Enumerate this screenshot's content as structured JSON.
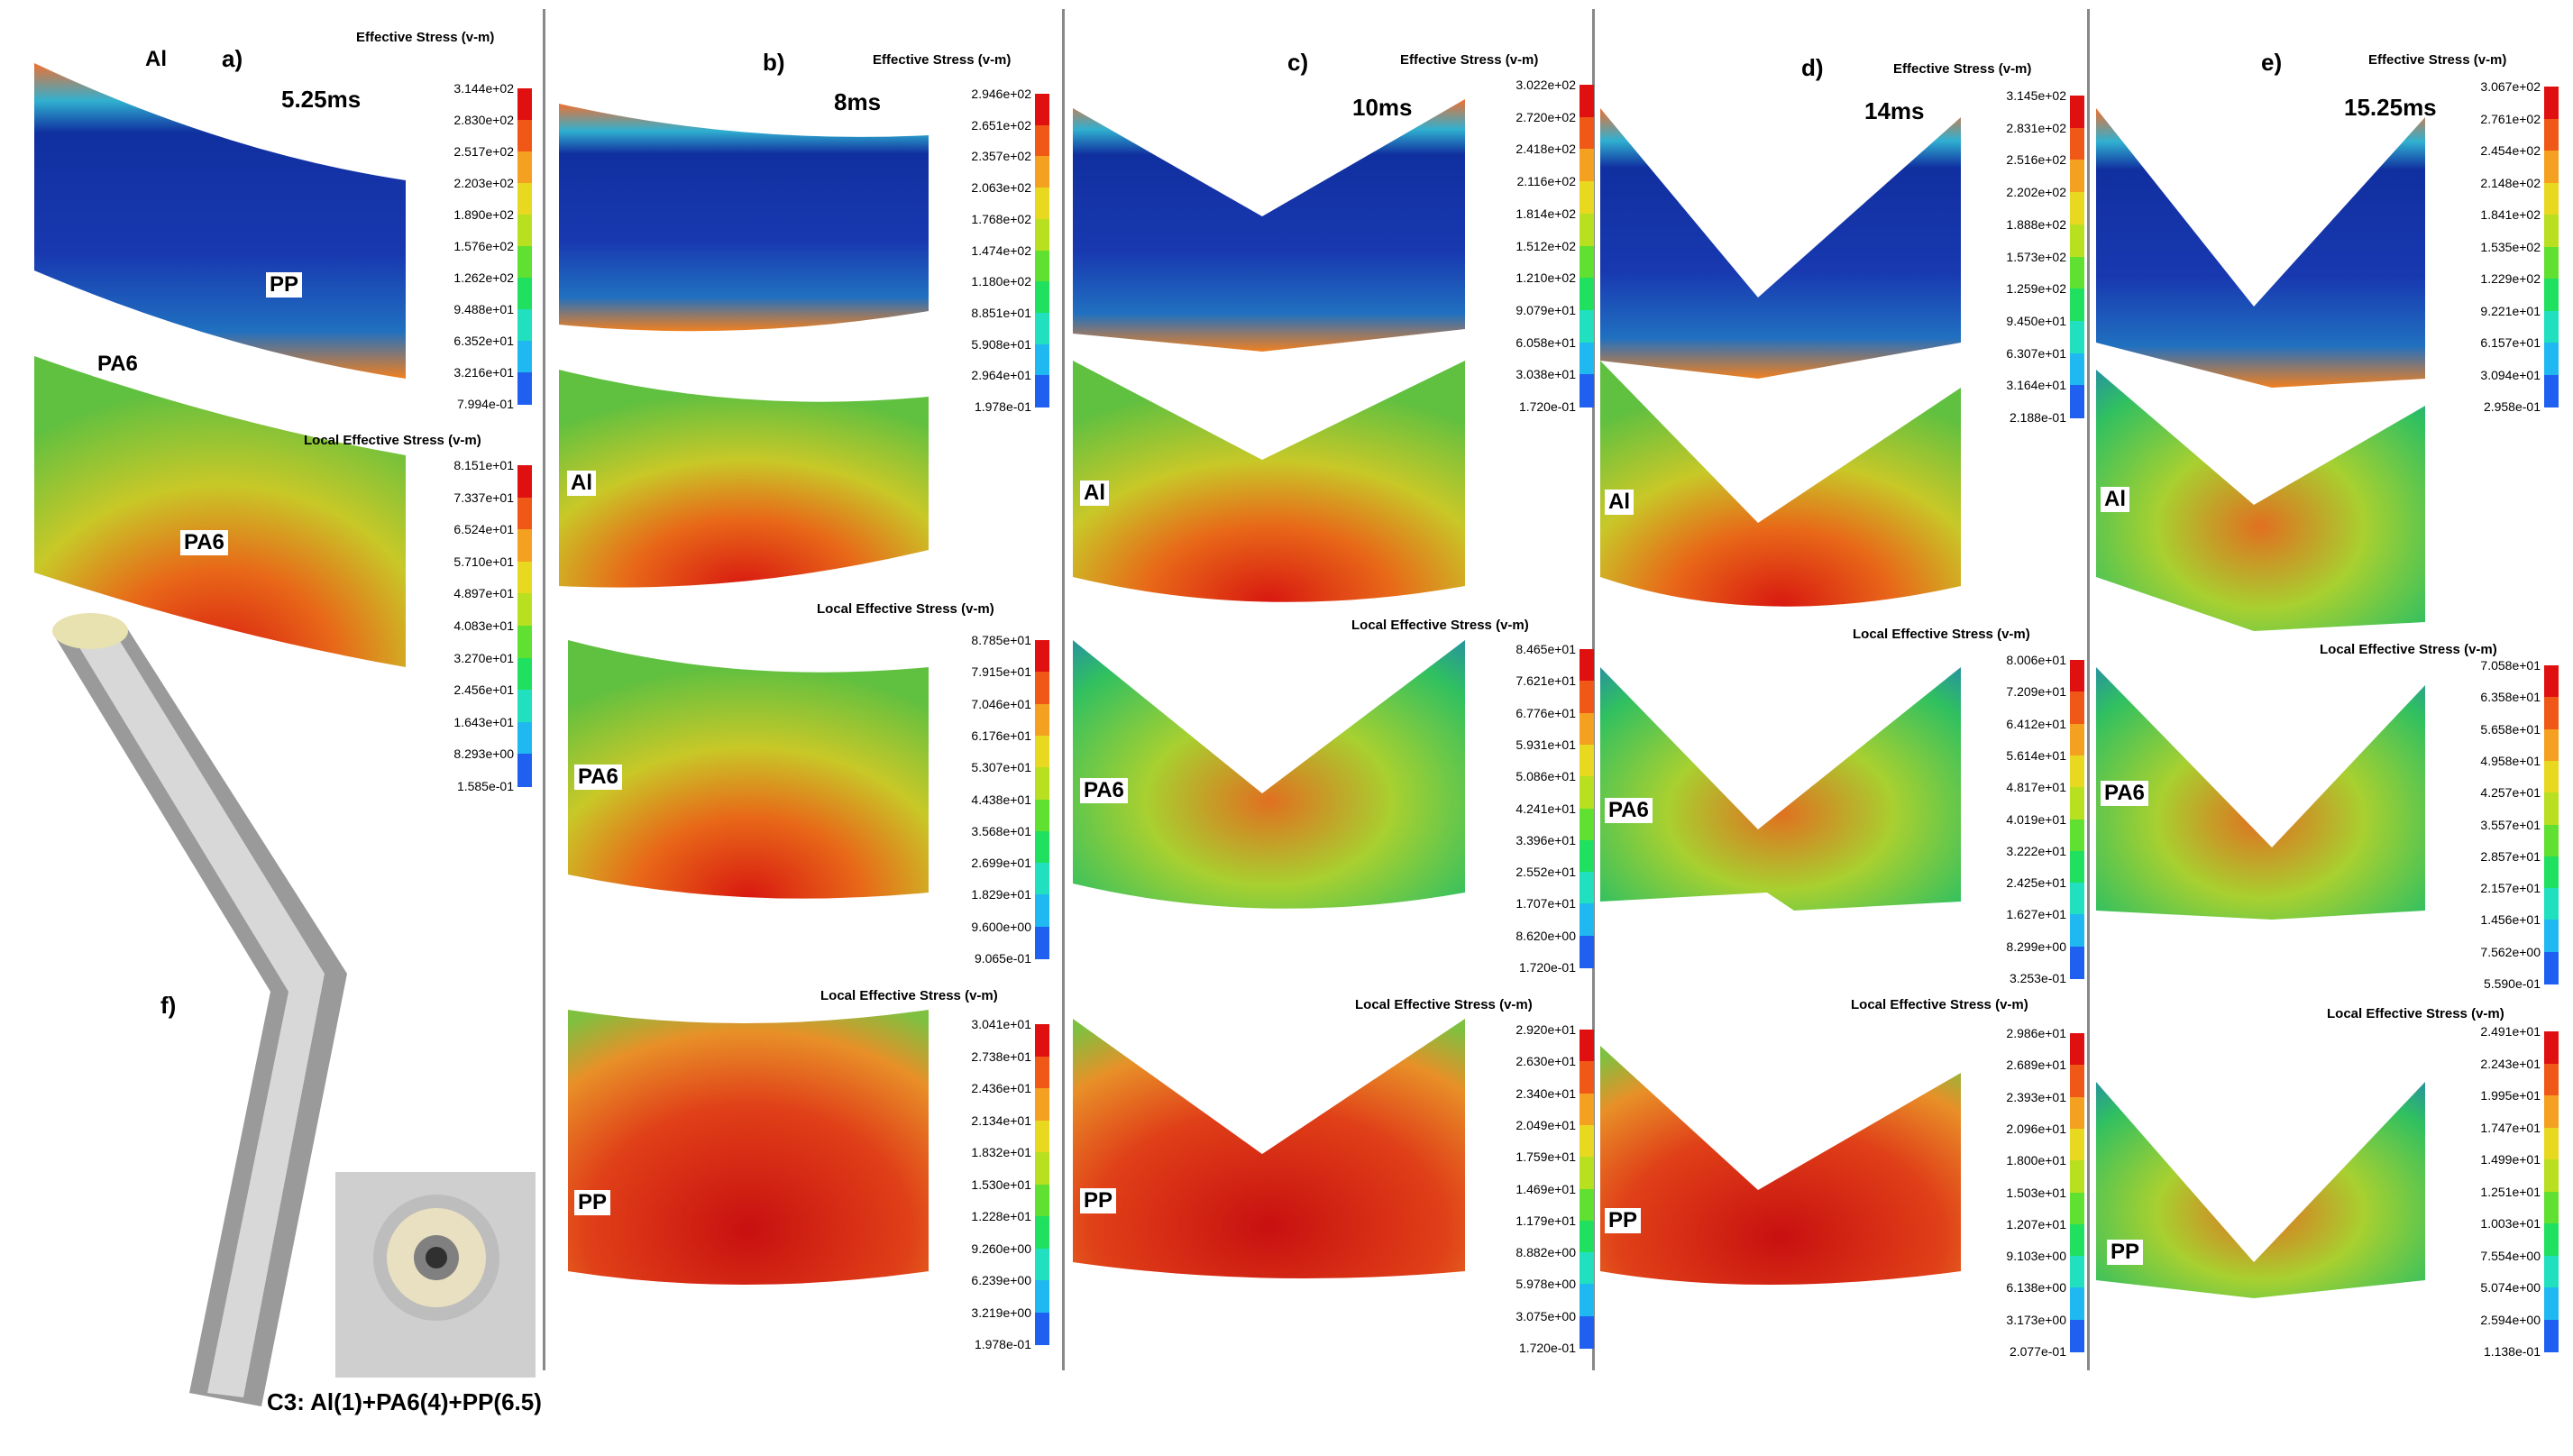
{
  "panels": [
    {
      "letter": "a)",
      "time": "5.25ms"
    },
    {
      "letter": "b)",
      "time": "8ms"
    },
    {
      "letter": "c)",
      "time": "10ms"
    },
    {
      "letter": "d)",
      "time": "14ms"
    },
    {
      "letter": "e)",
      "time": "15.25ms"
    }
  ],
  "materials": {
    "al": "Al",
    "pp": "PP",
    "pa6": "PA6"
  },
  "colorbar_titles": {
    "effective": "Effective Stress (v-m)",
    "local": "Local Effective Stress (v-m)"
  },
  "colorbars": [
    {
      "id": "a-top",
      "ticks": [
        "3.144e+02",
        "2.830e+02",
        "2.517e+02",
        "2.203e+02",
        "1.890e+02",
        "1.576e+02",
        "1.262e+02",
        "9.488e+01",
        "6.352e+01",
        "3.216e+01",
        "7.994e-01"
      ]
    },
    {
      "id": "a-pa6",
      "ticks": [
        "8.151e+01",
        "7.337e+01",
        "6.524e+01",
        "5.710e+01",
        "4.897e+01",
        "4.083e+01",
        "3.270e+01",
        "2.456e+01",
        "1.643e+01",
        "8.293e+00",
        "1.585e-01"
      ]
    },
    {
      "id": "b-top",
      "ticks": [
        "2.946e+02",
        "2.651e+02",
        "2.357e+02",
        "2.063e+02",
        "1.768e+02",
        "1.474e+02",
        "1.180e+02",
        "8.851e+01",
        "5.908e+01",
        "2.964e+01",
        "1.978e-01"
      ]
    },
    {
      "id": "b-pa6",
      "ticks": [
        "8.785e+01",
        "7.915e+01",
        "7.046e+01",
        "6.176e+01",
        "5.307e+01",
        "4.438e+01",
        "3.568e+01",
        "2.699e+01",
        "1.829e+01",
        "9.600e+00",
        "9.065e-01"
      ]
    },
    {
      "id": "b-pp",
      "ticks": [
        "3.041e+01",
        "2.738e+01",
        "2.436e+01",
        "2.134e+01",
        "1.832e+01",
        "1.530e+01",
        "1.228e+01",
        "9.260e+00",
        "6.239e+00",
        "3.219e+00",
        "1.978e-01"
      ]
    },
    {
      "id": "c-top",
      "ticks": [
        "3.022e+02",
        "2.720e+02",
        "2.418e+02",
        "2.116e+02",
        "1.814e+02",
        "1.512e+02",
        "1.210e+02",
        "9.079e+01",
        "6.058e+01",
        "3.038e+01",
        "1.720e-01"
      ]
    },
    {
      "id": "c-pa6",
      "ticks": [
        "8.465e+01",
        "7.621e+01",
        "6.776e+01",
        "5.931e+01",
        "5.086e+01",
        "4.241e+01",
        "3.396e+01",
        "2.552e+01",
        "1.707e+01",
        "8.620e+00",
        "1.720e-01"
      ]
    },
    {
      "id": "c-pp",
      "ticks": [
        "2.920e+01",
        "2.630e+01",
        "2.340e+01",
        "2.049e+01",
        "1.759e+01",
        "1.469e+01",
        "1.179e+01",
        "8.882e+00",
        "5.978e+00",
        "3.075e+00",
        "1.720e-01"
      ]
    },
    {
      "id": "d-top",
      "ticks": [
        "3.145e+02",
        "2.831e+02",
        "2.516e+02",
        "2.202e+02",
        "1.888e+02",
        "1.573e+02",
        "1.259e+02",
        "9.450e+01",
        "6.307e+01",
        "3.164e+01",
        "2.188e-01"
      ]
    },
    {
      "id": "d-pa6",
      "ticks": [
        "8.006e+01",
        "7.209e+01",
        "6.412e+01",
        "5.614e+01",
        "4.817e+01",
        "4.019e+01",
        "3.222e+01",
        "2.425e+01",
        "1.627e+01",
        "8.299e+00",
        "3.253e-01"
      ]
    },
    {
      "id": "d-pp",
      "ticks": [
        "2.986e+01",
        "2.689e+01",
        "2.393e+01",
        "2.096e+01",
        "1.800e+01",
        "1.503e+01",
        "1.207e+01",
        "9.103e+00",
        "6.138e+00",
        "3.173e+00",
        "2.077e-01"
      ]
    },
    {
      "id": "e-top",
      "ticks": [
        "3.067e+02",
        "2.761e+02",
        "2.454e+02",
        "2.148e+02",
        "1.841e+02",
        "1.535e+02",
        "1.229e+02",
        "9.221e+01",
        "6.157e+01",
        "3.094e+01",
        "2.958e-01"
      ]
    },
    {
      "id": "e-pa6",
      "ticks": [
        "7.058e+01",
        "6.358e+01",
        "5.658e+01",
        "4.958e+01",
        "4.257e+01",
        "3.557e+01",
        "2.857e+01",
        "2.157e+01",
        "1.456e+01",
        "7.562e+00",
        "5.590e-01"
      ]
    },
    {
      "id": "e-pp",
      "ticks": [
        "2.491e+01",
        "2.243e+01",
        "1.995e+01",
        "1.747e+01",
        "1.499e+01",
        "1.251e+01",
        "1.003e+01",
        "7.554e+00",
        "5.074e+00",
        "2.594e+00",
        "1.138e-01"
      ]
    }
  ],
  "colorbar_colors": [
    "#e01010",
    "#f05818",
    "#f4a020",
    "#e8d820",
    "#b8e020",
    "#60e030",
    "#20e060",
    "#20e0c0",
    "#20b8f0",
    "#2060f0",
    "#1010d0"
  ],
  "photo": {
    "letter": "f)",
    "caption": "C3: Al(1)+PA6(4)+PP(6.5)"
  }
}
